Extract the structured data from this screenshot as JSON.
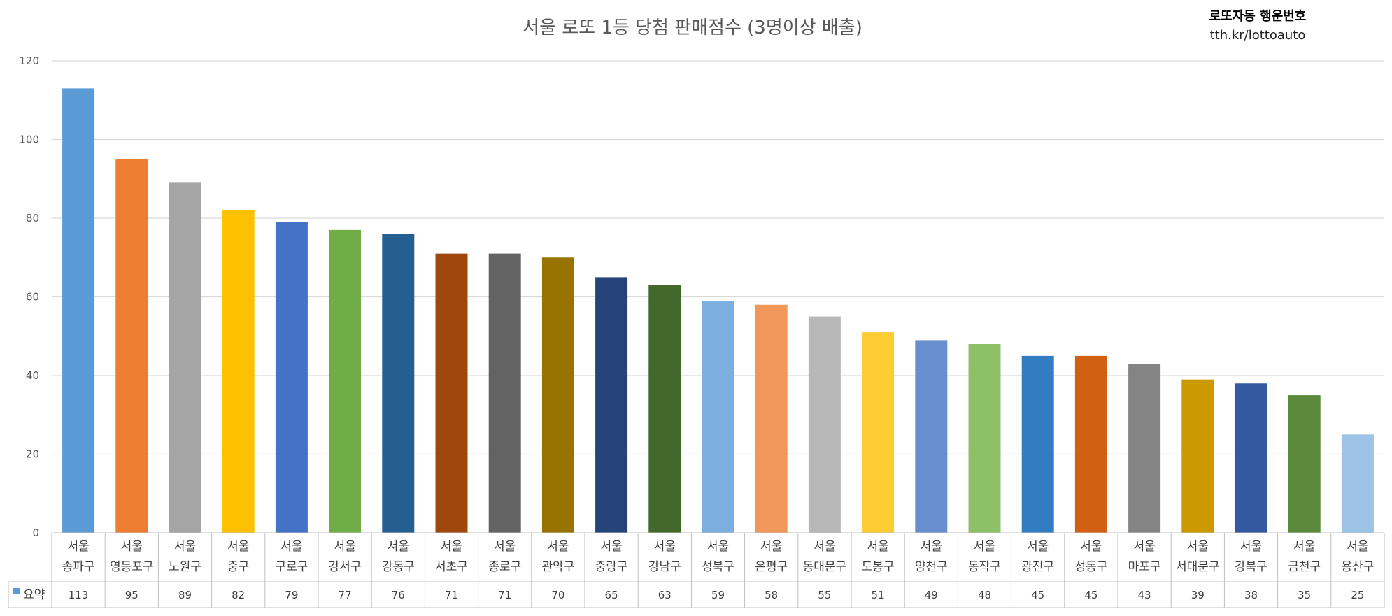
{
  "chart_data": {
    "type": "bar",
    "title": "서울 로또 1등 당첨 판매점수 (3명이상 배출)",
    "brand": {
      "name": "로또자동 행운번호",
      "url": "tth.kr/lottoauto"
    },
    "ylim": [
      0,
      120
    ],
    "yticks": [
      0,
      20,
      40,
      60,
      80,
      100,
      120
    ],
    "grid": true,
    "series": [
      {
        "name": "요약",
        "color": "#5b9bd5"
      }
    ],
    "categories": [
      [
        "서울",
        "송파구"
      ],
      [
        "서울",
        "영등포구"
      ],
      [
        "서울",
        "노원구"
      ],
      [
        "서울",
        "중구"
      ],
      [
        "서울",
        "구로구"
      ],
      [
        "서울",
        "강서구"
      ],
      [
        "서울",
        "강동구"
      ],
      [
        "서울",
        "서초구"
      ],
      [
        "서울",
        "종로구"
      ],
      [
        "서울",
        "관악구"
      ],
      [
        "서울",
        "중랑구"
      ],
      [
        "서울",
        "강남구"
      ],
      [
        "서울",
        "성북구"
      ],
      [
        "서울",
        "은평구"
      ],
      [
        "서울",
        "동대문구"
      ],
      [
        "서울",
        "도봉구"
      ],
      [
        "서울",
        "양천구"
      ],
      [
        "서울",
        "동작구"
      ],
      [
        "서울",
        "광진구"
      ],
      [
        "서울",
        "성동구"
      ],
      [
        "서울",
        "마포구"
      ],
      [
        "서울",
        "서대문구"
      ],
      [
        "서울",
        "강북구"
      ],
      [
        "서울",
        "금천구"
      ],
      [
        "서울",
        "용산구"
      ]
    ],
    "values": [
      113,
      95,
      89,
      82,
      79,
      77,
      76,
      71,
      71,
      70,
      65,
      63,
      59,
      58,
      55,
      51,
      49,
      48,
      45,
      45,
      43,
      39,
      38,
      35,
      25
    ],
    "colors": [
      "#5b9bd5",
      "#ed7d31",
      "#a5a5a5",
      "#ffc000",
      "#4472c4",
      "#70ad47",
      "#255e91",
      "#9e480e",
      "#636363",
      "#997300",
      "#264478",
      "#43682b",
      "#7cafdd",
      "#f1975a",
      "#b7b7b7",
      "#ffcd33",
      "#698ed0",
      "#8cc168",
      "#327dc2",
      "#d26012",
      "#848484",
      "#cc9a00",
      "#335aa1",
      "#5a8a39",
      "#9dc3e6"
    ]
  }
}
